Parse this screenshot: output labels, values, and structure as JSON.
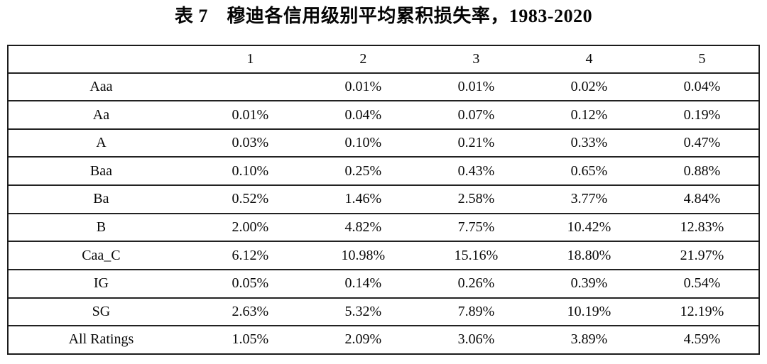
{
  "title": "表 7　穆迪各信用级别平均累积损失率，1983-2020",
  "colors": {
    "background": "#ffffff",
    "border": "#1b1b1b",
    "text": "#0a0a0a"
  },
  "chart_data": {
    "type": "table",
    "columns": [
      "",
      "1",
      "2",
      "3",
      "4",
      "5"
    ],
    "rows": [
      {
        "label": "Aaa",
        "values": [
          "",
          "0.01%",
          "0.01%",
          "0.02%",
          "0.04%"
        ]
      },
      {
        "label": "Aa",
        "values": [
          "0.01%",
          "0.04%",
          "0.07%",
          "0.12%",
          "0.19%"
        ]
      },
      {
        "label": "A",
        "values": [
          "0.03%",
          "0.10%",
          "0.21%",
          "0.33%",
          "0.47%"
        ]
      },
      {
        "label": "Baa",
        "values": [
          "0.10%",
          "0.25%",
          "0.43%",
          "0.65%",
          "0.88%"
        ]
      },
      {
        "label": "Ba",
        "values": [
          "0.52%",
          "1.46%",
          "2.58%",
          "3.77%",
          "4.84%"
        ]
      },
      {
        "label": "B",
        "values": [
          "2.00%",
          "4.82%",
          "7.75%",
          "10.42%",
          "12.83%"
        ]
      },
      {
        "label": "Caa_C",
        "values": [
          "6.12%",
          "10.98%",
          "15.16%",
          "18.80%",
          "21.97%"
        ]
      },
      {
        "label": "IG",
        "values": [
          "0.05%",
          "0.14%",
          "0.26%",
          "0.39%",
          "0.54%"
        ]
      },
      {
        "label": "SG",
        "values": [
          "2.63%",
          "5.32%",
          "7.89%",
          "10.19%",
          "12.19%"
        ]
      },
      {
        "label": "All Ratings",
        "values": [
          "1.05%",
          "2.09%",
          "3.06%",
          "3.89%",
          "4.59%"
        ]
      }
    ]
  }
}
